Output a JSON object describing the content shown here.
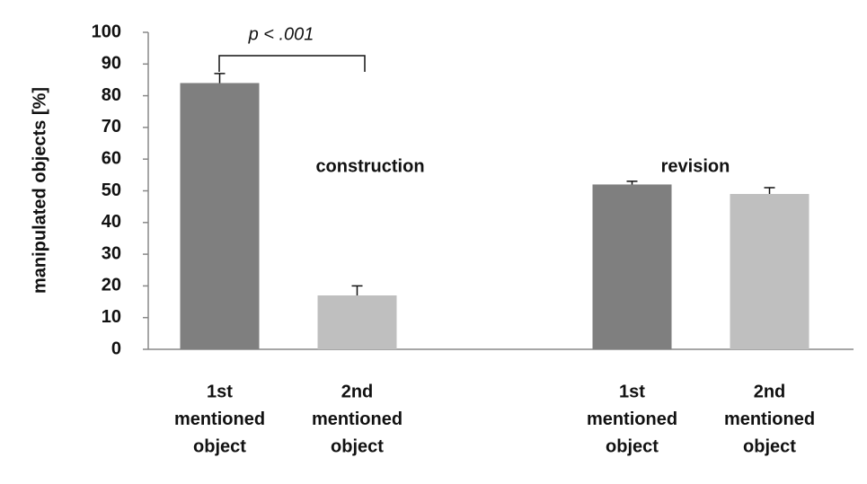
{
  "chart_data": {
    "type": "bar",
    "y_label": "manipulated objects [%]",
    "categories": [
      [
        "1st",
        "mentioned",
        "object"
      ],
      [
        "2nd",
        "mentioned",
        "object"
      ],
      null,
      [
        "1st",
        "mentioned",
        "object"
      ],
      [
        "2nd",
        "mentioned",
        "object"
      ]
    ],
    "values": [
      84,
      17,
      null,
      52,
      49
    ],
    "errors": [
      3,
      3,
      null,
      1,
      2
    ],
    "colors": [
      "#7f7f7f",
      "#bfbfbf",
      null,
      "#7f7f7f",
      "#bfbfbf"
    ],
    "ylim": [
      0,
      100
    ],
    "yticks": [
      0,
      10,
      20,
      30,
      40,
      50,
      60,
      70,
      80,
      90,
      100
    ],
    "annotations": [
      "construction",
      "revision",
      "p < .001"
    ]
  }
}
